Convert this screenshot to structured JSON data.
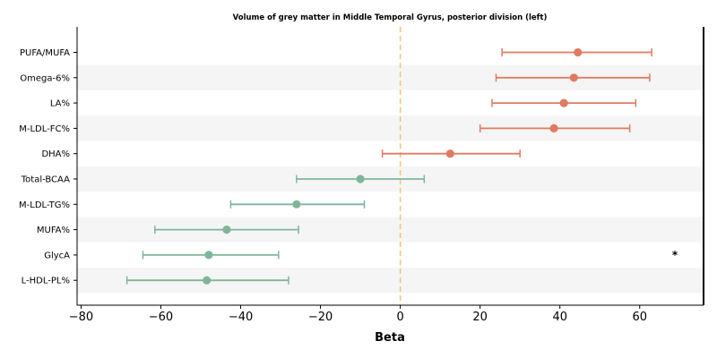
{
  "chart_data": {
    "type": "forest",
    "title": "Volume of grey matter in Middle Temporal Gyrus, posterior division (left)",
    "xlabel": "Beta",
    "xlim": [
      -81,
      76
    ],
    "xticks": [
      -80,
      -60,
      -40,
      -20,
      0,
      20,
      40,
      60
    ],
    "xtick_labels": [
      "−80",
      "−60",
      "−40",
      "−20",
      "0",
      "20",
      "40",
      "60"
    ],
    "reference_line": 0,
    "colors": {
      "positive": "#e07b5f",
      "negative": "#7fb69a",
      "reference": "#f5c275",
      "band": "#f5f5f5"
    },
    "rows": [
      {
        "label": "PUFA/MUFA",
        "beta": 44.5,
        "lower": 25.5,
        "upper": 63.0,
        "annotation": ""
      },
      {
        "label": "Omega-6%",
        "beta": 43.5,
        "lower": 24.0,
        "upper": 62.5,
        "annotation": ""
      },
      {
        "label": "LA%",
        "beta": 41.0,
        "lower": 23.0,
        "upper": 59.0,
        "annotation": ""
      },
      {
        "label": "M-LDL-FC%",
        "beta": 38.5,
        "lower": 20.0,
        "upper": 57.5,
        "annotation": ""
      },
      {
        "label": "DHA%",
        "beta": 12.5,
        "lower": -4.5,
        "upper": 30.0,
        "annotation": ""
      },
      {
        "label": "Total-BCAA",
        "beta": -10.0,
        "lower": -26.0,
        "upper": 6.0,
        "annotation": ""
      },
      {
        "label": "M-LDL-TG%",
        "beta": -26.0,
        "lower": -42.5,
        "upper": -9.0,
        "annotation": ""
      },
      {
        "label": "MUFA%",
        "beta": -43.5,
        "lower": -61.5,
        "upper": -25.5,
        "annotation": ""
      },
      {
        "label": "GlycA",
        "beta": -48.0,
        "lower": -64.5,
        "upper": -30.5,
        "annotation": "*"
      },
      {
        "label": "L-HDL-PL%",
        "beta": -48.5,
        "lower": -68.5,
        "upper": -28.0,
        "annotation": ""
      }
    ]
  }
}
